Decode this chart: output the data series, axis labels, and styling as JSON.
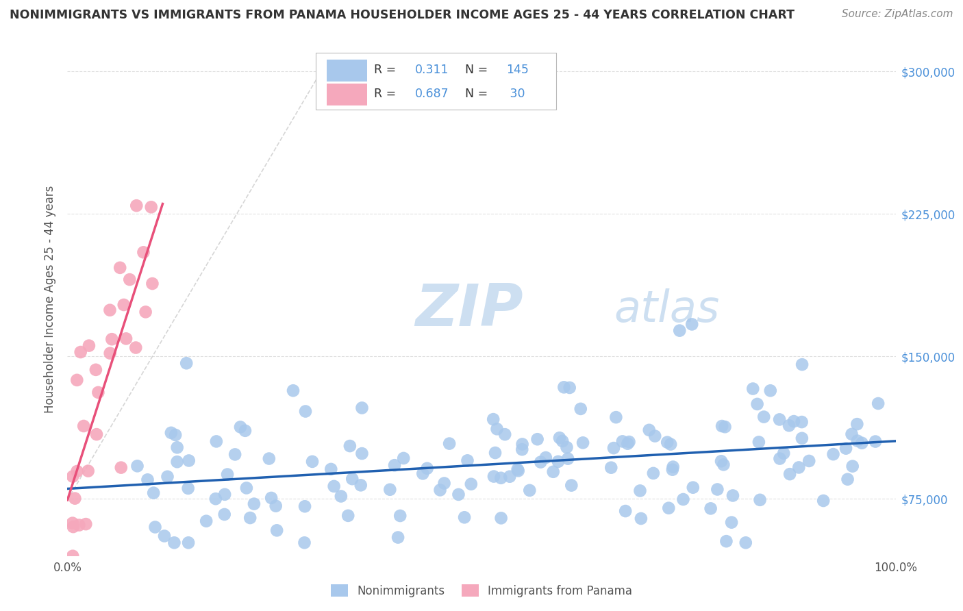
{
  "title": "NONIMMIGRANTS VS IMMIGRANTS FROM PANAMA HOUSEHOLDER INCOME AGES 25 - 44 YEARS CORRELATION CHART",
  "source": "Source: ZipAtlas.com",
  "ylabel": "Householder Income Ages 25 - 44 years",
  "xlim": [
    0,
    1.0
  ],
  "ylim": [
    45000,
    315000
  ],
  "ytick_positions": [
    75000,
    150000,
    225000,
    300000
  ],
  "ytick_labels": [
    "$75,000",
    "$150,000",
    "$225,000",
    "$300,000"
  ],
  "xtick_positions": [
    0.0,
    0.1,
    0.2,
    0.3,
    0.4,
    0.5,
    0.6,
    0.7,
    0.8,
    0.9,
    1.0
  ],
  "xtick_labels": [
    "0.0%",
    "",
    "",
    "",
    "",
    "",
    "",
    "",
    "",
    "",
    "100.0%"
  ],
  "blue_color": "#A8C8EC",
  "pink_color": "#F5A8BC",
  "blue_line_color": "#2060B0",
  "pink_line_color": "#E8507A",
  "diag_color": "#CCCCCC",
  "right_tick_color": "#4A90D9",
  "legend_text_color": "#4A90D9",
  "title_color": "#333333",
  "source_color": "#888888",
  "ylabel_color": "#555555",
  "bg_color": "#FFFFFF",
  "grid_color": "#E0E0E0",
  "watermark_zip_color": "#C8DCF0",
  "watermark_atlas_color": "#C8DCF0",
  "figsize": [
    14.06,
    8.92
  ],
  "dpi": 100
}
